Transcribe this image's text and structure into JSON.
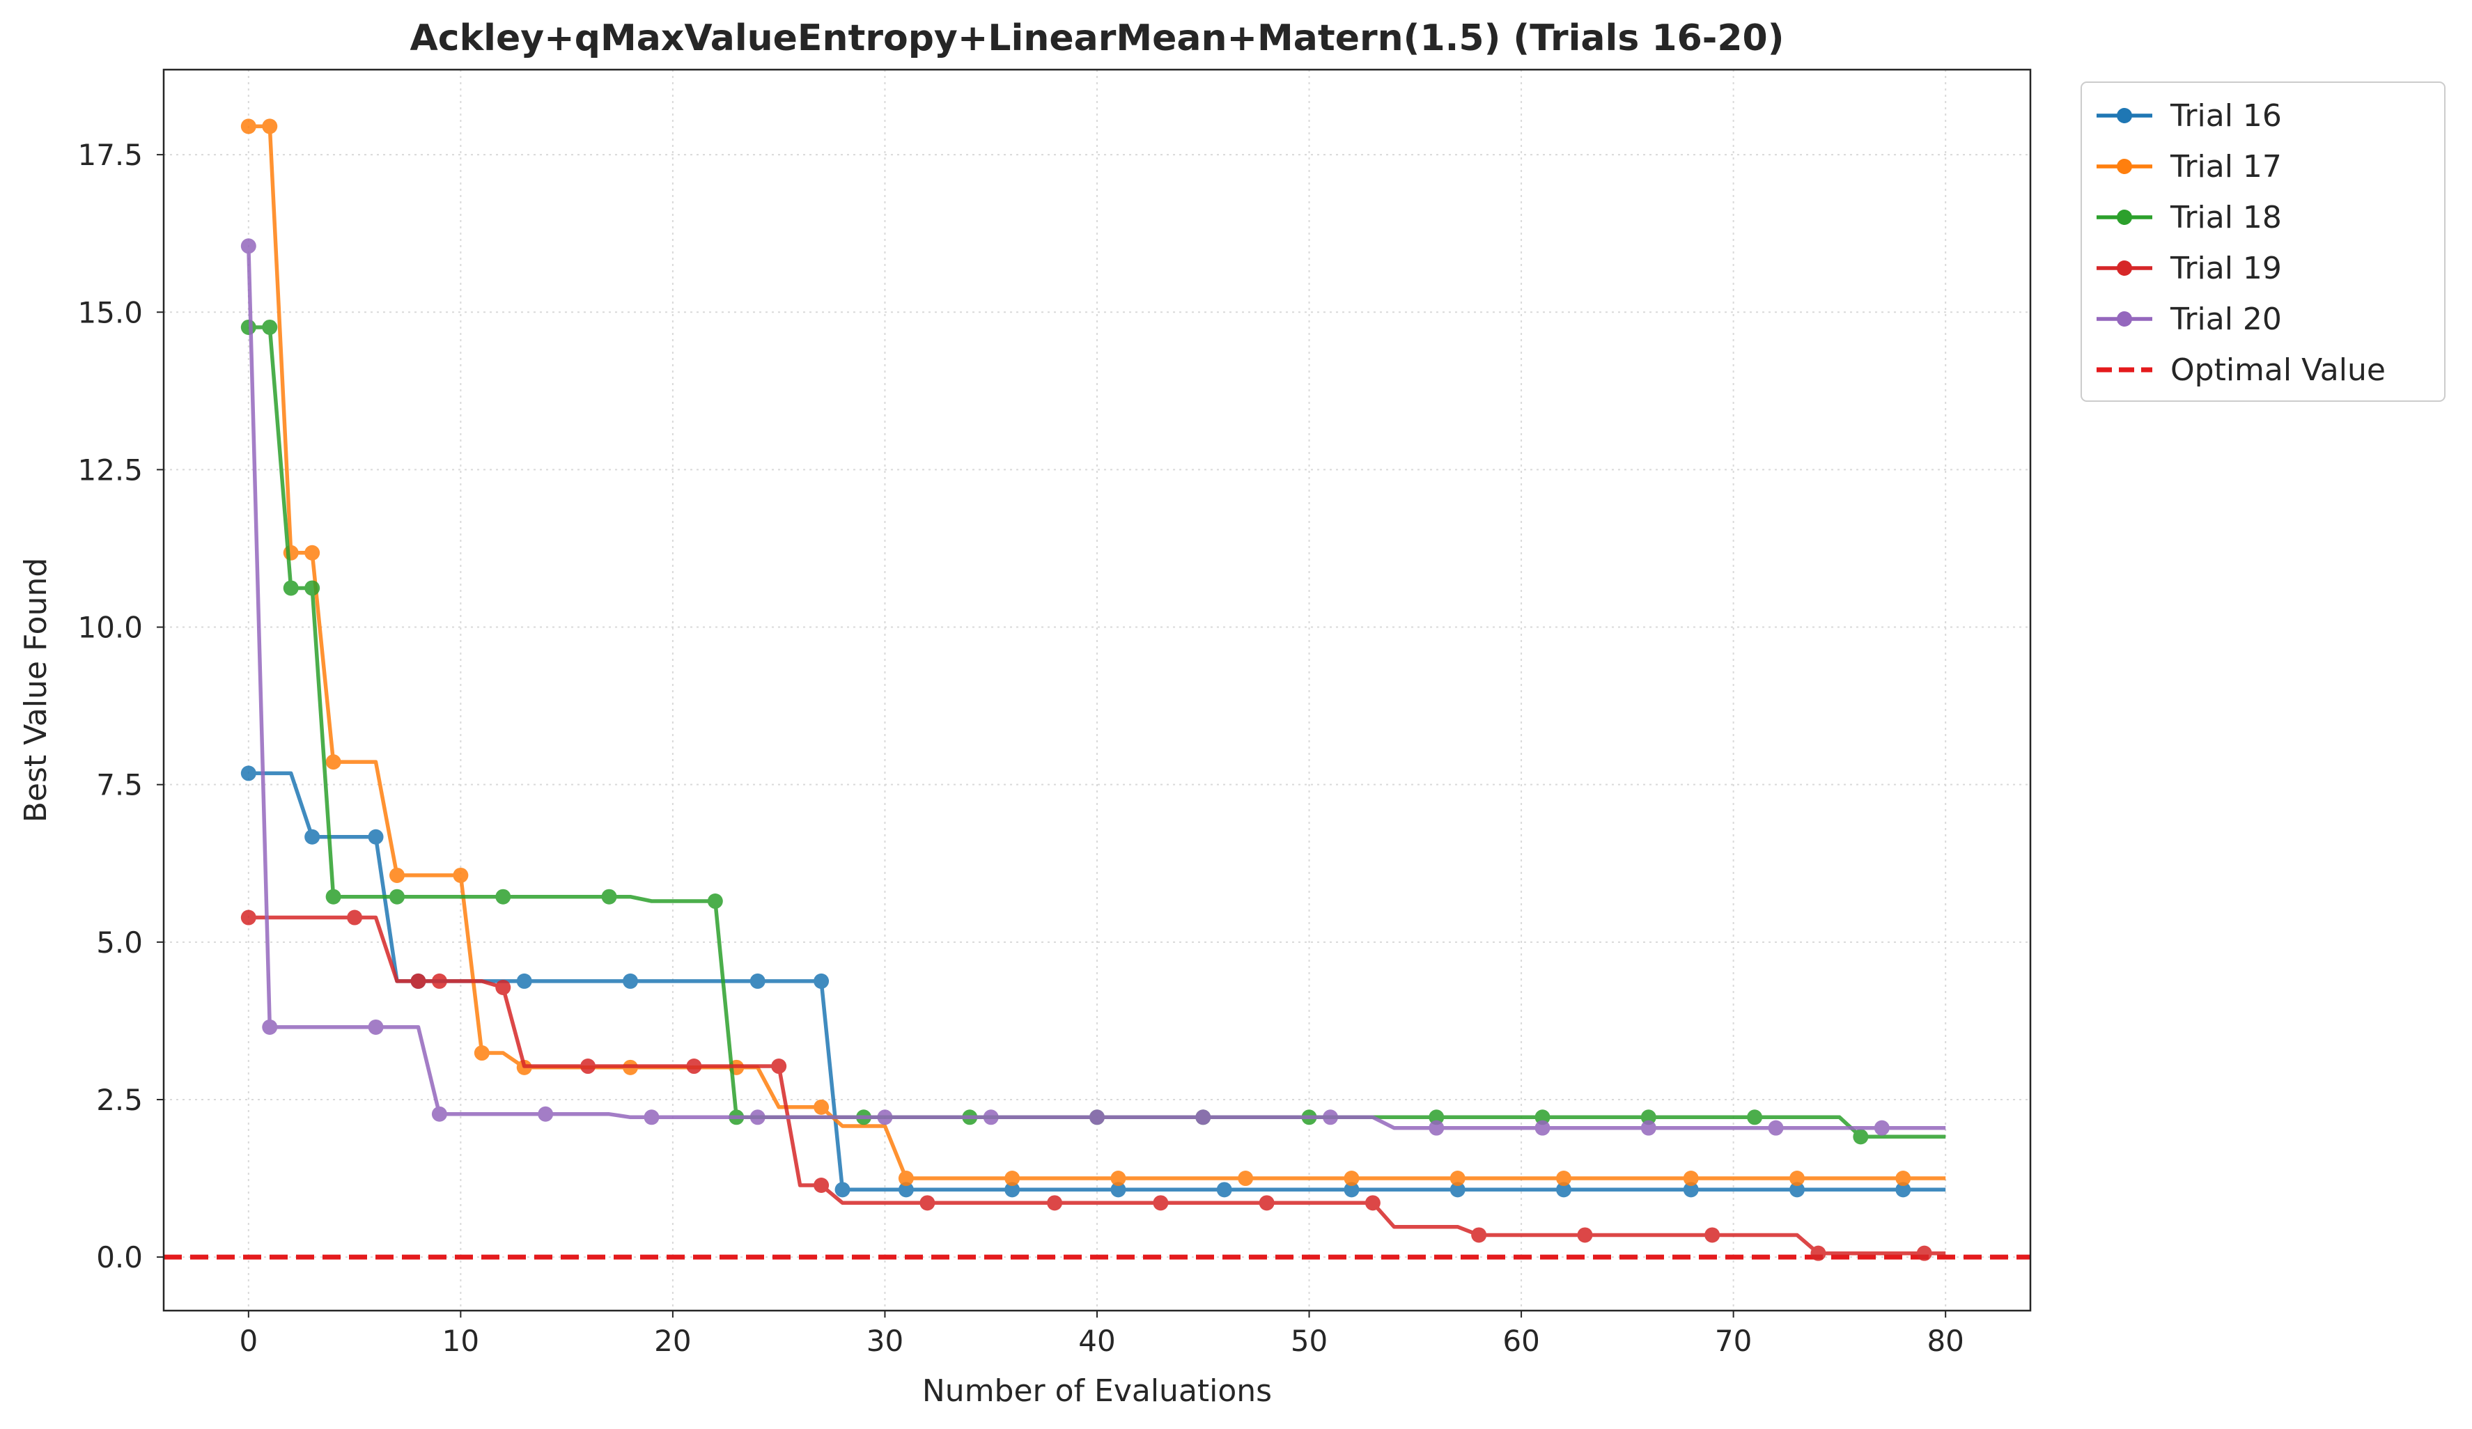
{
  "chart_data": {
    "type": "line",
    "title": "Ackley+qMaxValueEntropy+LinearMean+Matern(1.5) (Trials 16-20)",
    "xlabel": "Number of Evaluations",
    "ylabel": "Best Value Found",
    "xlim": [
      -4,
      84
    ],
    "ylim": [
      -0.85,
      18.85
    ],
    "xticks": [
      0,
      10,
      20,
      30,
      40,
      50,
      60,
      70,
      80
    ],
    "xtick_labels": [
      "0",
      "10",
      "20",
      "30",
      "40",
      "50",
      "60",
      "70",
      "80"
    ],
    "yticks": [
      0,
      2.5,
      5,
      7.5,
      10,
      12.5,
      15,
      17.5
    ],
    "ytick_labels": [
      "0.0",
      "2.5",
      "5.0",
      "7.5",
      "10.0",
      "12.5",
      "15.0",
      "17.5"
    ],
    "grid": true,
    "legend_position": "outside-top-right",
    "series": [
      {
        "name": "Trial 16",
        "color": "#1f77b4",
        "points": [
          [
            0,
            7.68
          ],
          [
            2,
            7.68
          ],
          [
            3,
            6.67
          ],
          [
            6,
            6.67
          ],
          [
            7,
            4.38
          ],
          [
            27,
            4.38
          ],
          [
            28,
            1.07
          ],
          [
            80,
            1.07
          ]
        ],
        "markers": [
          0,
          3,
          6,
          8,
          13,
          18,
          24,
          27,
          28,
          31,
          36,
          41,
          46,
          52,
          57,
          62,
          68,
          73,
          78
        ]
      },
      {
        "name": "Trial 17",
        "color": "#ff7f0e",
        "points": [
          [
            0,
            17.95
          ],
          [
            1,
            17.95
          ],
          [
            2,
            11.18
          ],
          [
            3,
            11.18
          ],
          [
            4,
            7.86
          ],
          [
            6,
            7.86
          ],
          [
            7,
            6.06
          ],
          [
            10,
            6.06
          ],
          [
            11,
            3.24
          ],
          [
            12,
            3.24
          ],
          [
            13,
            3.01
          ],
          [
            24,
            3.01
          ],
          [
            25,
            2.38
          ],
          [
            27,
            2.38
          ],
          [
            28,
            2.08
          ],
          [
            30,
            2.08
          ],
          [
            31,
            1.25
          ],
          [
            80,
            1.25
          ]
        ],
        "markers": [
          0,
          1,
          2,
          3,
          4,
          7,
          10,
          11,
          13,
          18,
          23,
          27,
          31,
          36,
          41,
          47,
          52,
          57,
          62,
          68,
          73,
          78
        ]
      },
      {
        "name": "Trial 18",
        "color": "#2ca02c",
        "points": [
          [
            0,
            14.76
          ],
          [
            1,
            14.76
          ],
          [
            2,
            10.62
          ],
          [
            3,
            10.62
          ],
          [
            4,
            5.72
          ],
          [
            18,
            5.72
          ],
          [
            19,
            5.65
          ],
          [
            22,
            5.65
          ],
          [
            23,
            2.22
          ],
          [
            75,
            2.22
          ],
          [
            76,
            1.91
          ],
          [
            80,
            1.91
          ]
        ],
        "markers": [
          0,
          1,
          2,
          3,
          4,
          7,
          12,
          17,
          22,
          23,
          29,
          34,
          40,
          45,
          50,
          56,
          61,
          66,
          71,
          76
        ]
      },
      {
        "name": "Trial 19",
        "color": "#d62728",
        "points": [
          [
            0,
            5.39
          ],
          [
            6,
            5.39
          ],
          [
            7,
            4.38
          ],
          [
            11,
            4.38
          ],
          [
            12,
            4.28
          ],
          [
            13,
            3.03
          ],
          [
            25,
            3.03
          ],
          [
            26,
            1.14
          ],
          [
            27,
            1.14
          ],
          [
            28,
            0.86
          ],
          [
            53,
            0.86
          ],
          [
            54,
            0.48
          ],
          [
            57,
            0.48
          ],
          [
            58,
            0.35
          ],
          [
            73,
            0.35
          ],
          [
            74,
            0.06
          ],
          [
            80,
            0.06
          ]
        ],
        "markers": [
          0,
          5,
          8,
          9,
          12,
          16,
          21,
          25,
          27,
          32,
          38,
          43,
          48,
          53,
          58,
          63,
          69,
          74,
          79
        ]
      },
      {
        "name": "Trial 20",
        "color": "#9467bd",
        "points": [
          [
            0,
            16.05
          ],
          [
            1,
            3.65
          ],
          [
            8,
            3.65
          ],
          [
            9,
            2.27
          ],
          [
            17,
            2.27
          ],
          [
            18,
            2.22
          ],
          [
            53,
            2.22
          ],
          [
            54,
            2.05
          ],
          [
            80,
            2.05
          ]
        ],
        "markers": [
          0,
          1,
          6,
          9,
          14,
          19,
          24,
          30,
          35,
          40,
          45,
          51,
          56,
          61,
          66,
          72,
          77
        ]
      }
    ],
    "optimal_value": {
      "name": "Optimal Value",
      "y": 0,
      "color": "#e41a1c",
      "style": "dashed"
    }
  }
}
